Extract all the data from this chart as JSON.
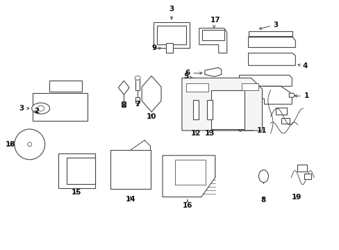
{
  "bg_color": "#ffffff",
  "lc": "#444444",
  "lw": 0.8,
  "fontsize": 7.5,
  "fig_w": 4.89,
  "fig_h": 3.6,
  "dpi": 100
}
